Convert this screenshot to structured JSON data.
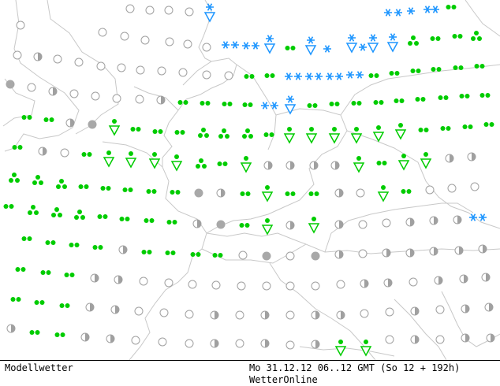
{
  "footer": {
    "model_label": "Modellwetter",
    "run_info": "Mo 31.12.12 06..12 GMT (So 12 + 192h)",
    "brand": "WetterOnline"
  },
  "colors": {
    "background": "#ffffff",
    "borders": "#c8c8c8",
    "neutral_symbol": "#a0a0a0",
    "rain": "#00cc00",
    "snow": "#1e96ff"
  },
  "legend_icons": [
    "clear-circle",
    "half-cloud-circle",
    "overcast-dot",
    "rain-dots",
    "rain-shower-triangle",
    "snow-stars",
    "snow-shower-triangle"
  ]
}
